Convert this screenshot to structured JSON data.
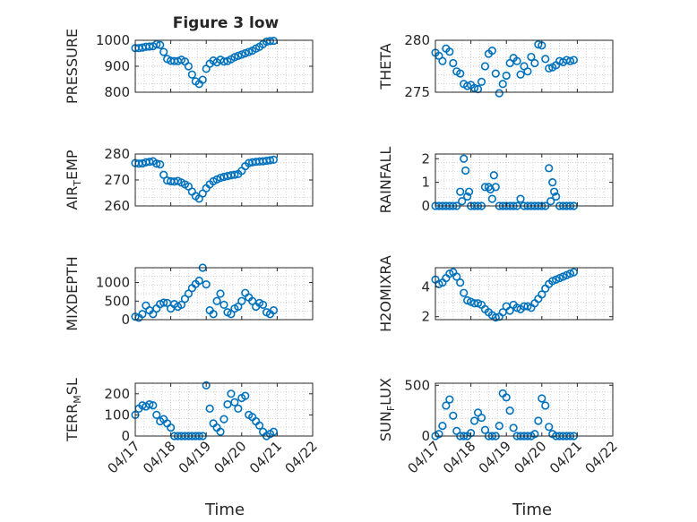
{
  "title": "Figure 3 low",
  "xlabel": "Time",
  "series_color": "#0072bd",
  "chart_data": [
    {
      "type": "scatter",
      "name": "pressure",
      "ylabel": "PRESSURE",
      "yticks": [
        800,
        900,
        1000
      ],
      "ylim": [
        800,
        1000
      ],
      "xticks": [
        "04/17",
        "04/18",
        "04/19",
        "04/20",
        "04/21",
        "04/22"
      ],
      "xlim": [
        0,
        5
      ],
      "x": [
        0.0,
        0.1,
        0.2,
        0.3,
        0.4,
        0.5,
        0.6,
        0.7,
        0.8,
        0.9,
        1.0,
        1.1,
        1.2,
        1.3,
        1.4,
        1.5,
        1.6,
        1.7,
        1.8,
        1.9,
        2.0,
        2.1,
        2.2,
        2.3,
        2.4,
        2.5,
        2.6,
        2.7,
        2.8,
        2.9,
        3.0,
        3.1,
        3.2,
        3.3,
        3.4,
        3.5,
        3.6,
        3.7,
        3.8,
        3.9
      ],
      "y": [
        970,
        970,
        972,
        975,
        976,
        977,
        985,
        982,
        955,
        928,
        921,
        920,
        920,
        925,
        918,
        900,
        868,
        842,
        832,
        848,
        890,
        910,
        922,
        915,
        925,
        918,
        920,
        927,
        935,
        940,
        945,
        950,
        955,
        960,
        968,
        975,
        985,
        995,
        997,
        998
      ]
    },
    {
      "type": "scatter",
      "name": "theta",
      "ylabel": "THETA",
      "yticks": [
        275,
        280
      ],
      "ylim": [
        275,
        280
      ],
      "xticks": [
        "04/17",
        "04/18",
        "04/19",
        "04/20",
        "04/21",
        "04/22"
      ],
      "xlim": [
        0,
        5
      ],
      "x": [
        0.0,
        0.1,
        0.2,
        0.3,
        0.4,
        0.5,
        0.6,
        0.7,
        0.8,
        0.9,
        1.0,
        1.1,
        1.2,
        1.3,
        1.4,
        1.5,
        1.6,
        1.7,
        1.8,
        1.9,
        2.0,
        2.1,
        2.2,
        2.3,
        2.4,
        2.5,
        2.6,
        2.7,
        2.8,
        2.9,
        3.0,
        3.1,
        3.2,
        3.3,
        3.4,
        3.5,
        3.6,
        3.7,
        3.8,
        3.9
      ],
      "y": [
        278.8,
        278.5,
        278.0,
        279.2,
        278.9,
        277.8,
        277.0,
        276.8,
        275.8,
        275.6,
        275.7,
        275.4,
        275.3,
        276.0,
        277.5,
        278.7,
        279.0,
        276.8,
        274.9,
        275.8,
        276.6,
        277.8,
        278.3,
        278.0,
        276.7,
        277.5,
        277.0,
        278.4,
        277.8,
        279.6,
        279.5,
        278.2,
        277.3,
        277.4,
        277.6,
        278.0,
        277.9,
        278.1,
        278.0,
        278.1
      ]
    },
    {
      "type": "scatter",
      "name": "air_temp",
      "ylabel": "AIR",
      "ylabel_sub": "T",
      "ylabel_rest": "EMP",
      "yticks": [
        260,
        270,
        280
      ],
      "ylim": [
        260,
        280
      ],
      "xticks": [
        "04/17",
        "04/18",
        "04/19",
        "04/20",
        "04/21",
        "04/22"
      ],
      "xlim": [
        0,
        5
      ],
      "x": [
        0.0,
        0.1,
        0.2,
        0.3,
        0.4,
        0.5,
        0.6,
        0.7,
        0.8,
        0.9,
        1.0,
        1.1,
        1.2,
        1.3,
        1.4,
        1.5,
        1.6,
        1.7,
        1.8,
        1.9,
        2.0,
        2.1,
        2.2,
        2.3,
        2.4,
        2.5,
        2.6,
        2.7,
        2.8,
        2.9,
        3.0,
        3.1,
        3.2,
        3.3,
        3.4,
        3.5,
        3.6,
        3.7,
        3.8,
        3.9
      ],
      "y": [
        276.5,
        276.3,
        276.4,
        276.8,
        277.0,
        277.2,
        276.3,
        276.0,
        272.0,
        269.8,
        269.5,
        269.4,
        269.6,
        269.0,
        268.3,
        267.5,
        265.5,
        263.8,
        262.8,
        264.8,
        266.8,
        268.3,
        269.5,
        270.2,
        270.8,
        271.2,
        271.5,
        271.8,
        272.0,
        272.3,
        273.5,
        275.3,
        276.5,
        276.8,
        277.0,
        277.1,
        277.2,
        277.4,
        277.6,
        277.8
      ]
    },
    {
      "type": "scatter",
      "name": "rainfall",
      "ylabel": "RAINFALL",
      "yticks": [
        0,
        1,
        2
      ],
      "ylim": [
        0,
        2.2
      ],
      "xticks": [
        "04/17",
        "04/18",
        "04/19",
        "04/20",
        "04/21",
        "04/22"
      ],
      "xlim": [
        0,
        5
      ],
      "x": [
        0.0,
        0.1,
        0.2,
        0.3,
        0.4,
        0.5,
        0.6,
        0.7,
        0.75,
        0.8,
        0.85,
        0.9,
        0.95,
        1.0,
        1.1,
        1.2,
        1.3,
        1.4,
        1.5,
        1.55,
        1.6,
        1.65,
        1.7,
        1.8,
        1.9,
        2.0,
        2.1,
        2.2,
        2.3,
        2.4,
        2.5,
        2.6,
        2.7,
        2.8,
        2.9,
        3.0,
        3.1,
        3.2,
        3.25,
        3.3,
        3.35,
        3.4,
        3.5,
        3.6,
        3.7,
        3.8,
        3.9
      ],
      "y": [
        0,
        0,
        0,
        0,
        0,
        0,
        0,
        0.6,
        0.2,
        2.0,
        1.5,
        0.4,
        0.6,
        0,
        0,
        0,
        0,
        0.8,
        0.8,
        0.7,
        0.3,
        1.3,
        0.8,
        0,
        0,
        0,
        0,
        0,
        0,
        0.3,
        0,
        0,
        0,
        0,
        0,
        0,
        0,
        1.6,
        0.2,
        1.0,
        0.6,
        0.4,
        0,
        0,
        0,
        0,
        0
      ]
    },
    {
      "type": "scatter",
      "name": "mixdepth",
      "ylabel": "MIXDEPTH",
      "yticks": [
        0,
        500,
        1000
      ],
      "ylim": [
        0,
        1400
      ],
      "xticks": [
        "04/17",
        "04/18",
        "04/19",
        "04/20",
        "04/21",
        "04/22"
      ],
      "xlim": [
        0,
        5
      ],
      "x": [
        0.0,
        0.1,
        0.2,
        0.3,
        0.4,
        0.5,
        0.6,
        0.7,
        0.8,
        0.9,
        1.0,
        1.1,
        1.2,
        1.3,
        1.4,
        1.5,
        1.6,
        1.7,
        1.8,
        1.9,
        2.0,
        2.1,
        2.2,
        2.3,
        2.4,
        2.5,
        2.6,
        2.7,
        2.8,
        2.9,
        3.0,
        3.1,
        3.2,
        3.3,
        3.4,
        3.5,
        3.6,
        3.7,
        3.8,
        3.9
      ],
      "y": [
        80,
        50,
        150,
        380,
        250,
        150,
        300,
        420,
        460,
        450,
        300,
        420,
        350,
        400,
        560,
        700,
        850,
        960,
        1050,
        1400,
        950,
        250,
        150,
        500,
        700,
        400,
        200,
        150,
        300,
        350,
        500,
        720,
        600,
        500,
        350,
        450,
        400,
        200,
        150,
        250
      ]
    },
    {
      "type": "scatter",
      "name": "h2omixra",
      "ylabel": "H2OMIXRA",
      "yticks": [
        2,
        4
      ],
      "ylim": [
        1.8,
        5.3
      ],
      "xticks": [
        "04/17",
        "04/18",
        "04/19",
        "04/20",
        "04/21",
        "04/22"
      ],
      "xlim": [
        0,
        5
      ],
      "x": [
        0.0,
        0.1,
        0.2,
        0.3,
        0.4,
        0.5,
        0.6,
        0.7,
        0.8,
        0.9,
        1.0,
        1.1,
        1.2,
        1.3,
        1.4,
        1.5,
        1.6,
        1.7,
        1.8,
        1.9,
        2.0,
        2.1,
        2.2,
        2.3,
        2.4,
        2.5,
        2.6,
        2.7,
        2.8,
        2.9,
        3.0,
        3.1,
        3.2,
        3.3,
        3.4,
        3.5,
        3.6,
        3.7,
        3.8,
        3.9
      ],
      "y": [
        4.5,
        4.2,
        4.3,
        4.6,
        4.9,
        5.0,
        4.7,
        4.3,
        3.6,
        3.1,
        3.0,
        2.9,
        2.9,
        2.8,
        2.5,
        2.3,
        2.1,
        1.95,
        2.0,
        2.3,
        2.7,
        2.4,
        2.8,
        2.6,
        2.5,
        2.7,
        2.7,
        2.6,
        2.9,
        3.2,
        3.5,
        3.9,
        4.2,
        4.4,
        4.5,
        4.6,
        4.7,
        4.8,
        4.9,
        5.0
      ]
    },
    {
      "type": "scatter",
      "name": "terr_msl",
      "ylabel": "TERR",
      "ylabel_sub": "M",
      "ylabel_rest": "SL",
      "yticks": [
        0,
        100,
        200
      ],
      "ylim": [
        0,
        250
      ],
      "xticks": [
        "04/17",
        "04/18",
        "04/19",
        "04/20",
        "04/21",
        "04/22"
      ],
      "xlim": [
        0,
        5
      ],
      "x": [
        0.0,
        0.1,
        0.2,
        0.3,
        0.4,
        0.5,
        0.6,
        0.7,
        0.8,
        0.9,
        1.0,
        1.1,
        1.2,
        1.3,
        1.4,
        1.5,
        1.6,
        1.7,
        1.8,
        1.9,
        2.0,
        2.1,
        2.2,
        2.3,
        2.4,
        2.5,
        2.6,
        2.7,
        2.8,
        2.9,
        3.0,
        3.1,
        3.2,
        3.3,
        3.4,
        3.5,
        3.6,
        3.7,
        3.8,
        3.9
      ],
      "y": [
        100,
        130,
        145,
        140,
        150,
        145,
        100,
        70,
        80,
        60,
        40,
        0,
        0,
        0,
        0,
        0,
        0,
        0,
        0,
        0,
        240,
        130,
        60,
        40,
        20,
        80,
        150,
        200,
        160,
        130,
        180,
        190,
        100,
        90,
        70,
        50,
        20,
        0,
        10,
        20
      ]
    },
    {
      "type": "scatter",
      "name": "sun_flux",
      "ylabel": "SUN",
      "ylabel_sub": "F",
      "ylabel_rest": "LUX",
      "yticks": [
        0,
        500
      ],
      "ylim": [
        0,
        520
      ],
      "xticks": [
        "04/17",
        "04/18",
        "04/19",
        "04/20",
        "04/21",
        "04/22"
      ],
      "xlim": [
        0,
        5
      ],
      "x": [
        0.0,
        0.1,
        0.2,
        0.3,
        0.4,
        0.5,
        0.6,
        0.7,
        0.8,
        0.9,
        1.0,
        1.1,
        1.2,
        1.3,
        1.4,
        1.5,
        1.6,
        1.7,
        1.8,
        1.9,
        2.0,
        2.1,
        2.2,
        2.3,
        2.4,
        2.5,
        2.6,
        2.7,
        2.8,
        2.9,
        3.0,
        3.1,
        3.2,
        3.3,
        3.4,
        3.5,
        3.6,
        3.7,
        3.8,
        3.9
      ],
      "y": [
        0,
        20,
        100,
        300,
        360,
        200,
        50,
        0,
        0,
        0,
        30,
        150,
        230,
        180,
        60,
        0,
        0,
        0,
        100,
        420,
        380,
        250,
        80,
        0,
        0,
        0,
        0,
        0,
        20,
        150,
        370,
        300,
        90,
        20,
        0,
        0,
        0,
        0,
        0,
        0
      ]
    }
  ]
}
